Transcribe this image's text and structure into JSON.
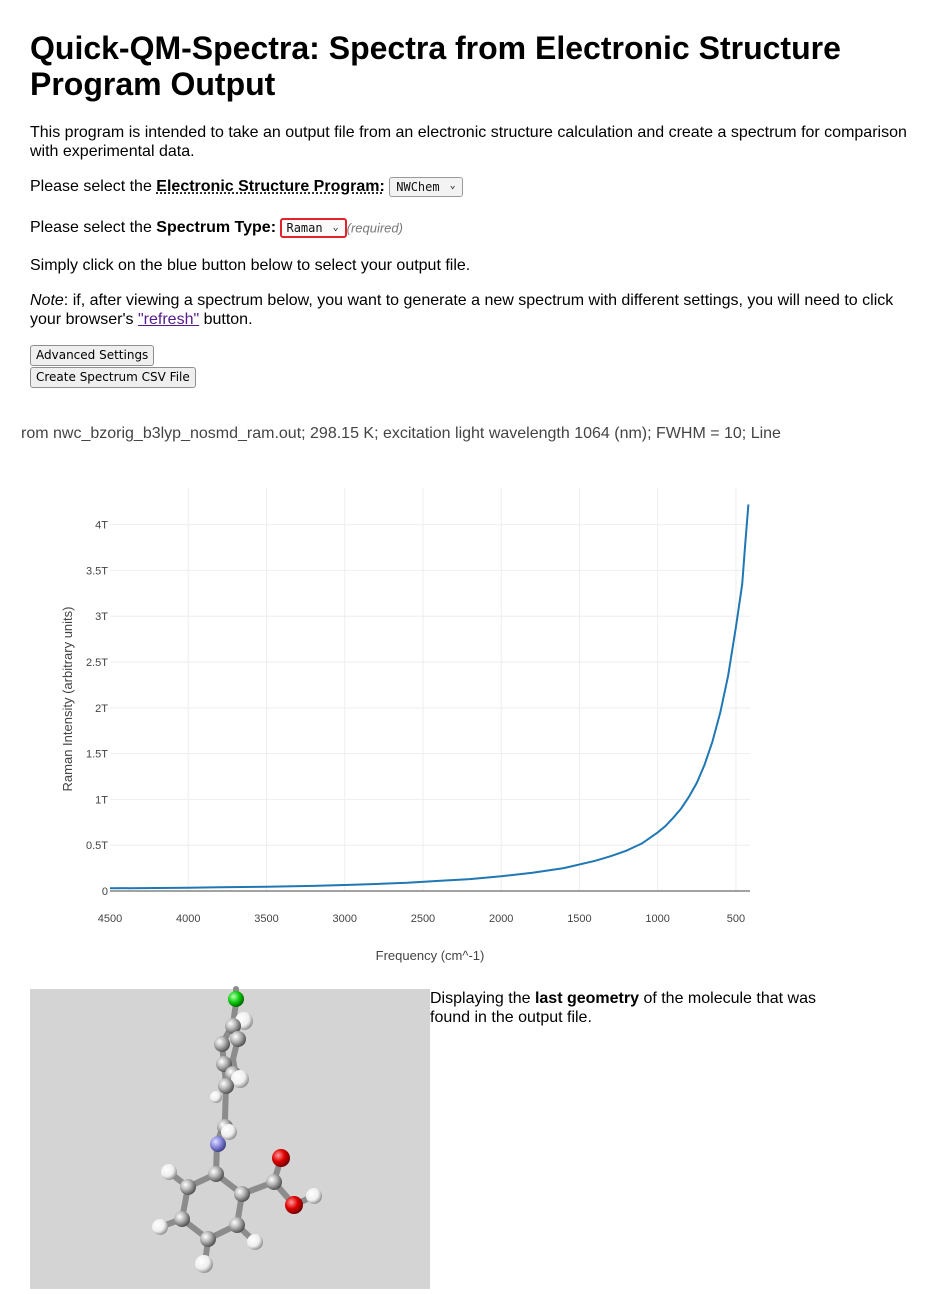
{
  "page": {
    "title": "Quick-QM-Spectra: Spectra from Electronic Structure Program Output",
    "intro": "This program is intended to take an output file from an electronic structure calculation and create a spectrum for comparison with experimental data."
  },
  "program_row": {
    "prefix": "Please select the ",
    "label": "Electronic Structure Program:",
    "selected": "NWChem"
  },
  "spectrum_row": {
    "prefix": "Please select the ",
    "label": "Spectrum Type:",
    "selected": "Raman",
    "required_hint": "(required)"
  },
  "instruction": "Simply click on the blue button below to select your output file.",
  "note": {
    "label": "Note",
    "text_before": ": if, after viewing a spectrum below, you want to generate a new spectrum with different settings, you will need to click your browser's ",
    "link": "\"refresh\"",
    "text_after": " button."
  },
  "buttons": {
    "advanced": "Advanced Settings",
    "csv": "Create Spectrum CSV File"
  },
  "caption": "rom nwc_bzorig_b3lyp_nosmd_ram.out; 298.15 K; excitation light wavelength 1064 (nm); FWHM = 10; Line",
  "geometry_text": {
    "before": "Displaying the ",
    "bold": "last geometry",
    "after": " of the molecule that was found in the output file."
  },
  "colors": {
    "line": "#1f77b4",
    "required_border": "#e0242a",
    "viewer_bg": "#d4d4d4"
  },
  "chart_data": {
    "type": "line",
    "title": "",
    "xlabel": "Frequency (cm^-1)",
    "ylabel": "Raman Intensity (arbitrary units)",
    "x_reversed": true,
    "xlim": [
      4500,
      410
    ],
    "ylim": [
      0,
      4.4
    ],
    "x_ticks": [
      4500,
      4000,
      3500,
      3000,
      2500,
      2000,
      1500,
      1000,
      500
    ],
    "y_ticks": [
      0,
      0.5,
      1,
      1.5,
      2,
      2.5,
      3,
      3.5,
      4
    ],
    "y_tick_labels": [
      "0",
      "0.5T",
      "1T",
      "1.5T",
      "2T",
      "2.5T",
      "3T",
      "3.5T",
      "4T"
    ],
    "grid": true,
    "series": [
      {
        "x": [
          4500,
          4200,
          4000,
          3800,
          3500,
          3200,
          3000,
          2800,
          2600,
          2400,
          2200,
          2000,
          1800,
          1600,
          1400,
          1300,
          1200,
          1100,
          1000,
          950,
          900,
          850,
          800,
          750,
          700,
          650,
          600,
          550,
          500,
          460,
          440,
          420
        ],
        "y": [
          0.03,
          0.033,
          0.036,
          0.04,
          0.047,
          0.056,
          0.065,
          0.076,
          0.09,
          0.11,
          0.13,
          0.16,
          0.2,
          0.25,
          0.33,
          0.38,
          0.44,
          0.52,
          0.64,
          0.71,
          0.8,
          0.9,
          1.03,
          1.18,
          1.38,
          1.63,
          1.95,
          2.35,
          2.88,
          3.35,
          3.8,
          4.22
        ]
      }
    ]
  }
}
